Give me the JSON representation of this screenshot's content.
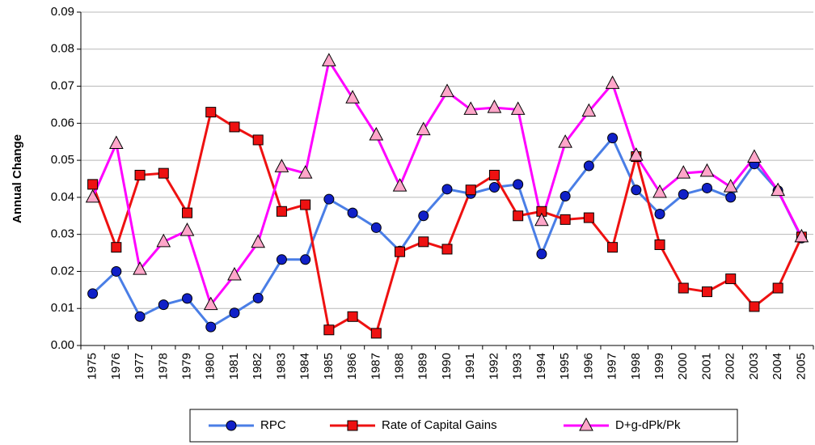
{
  "chart_data": {
    "type": "line",
    "y_label": "Annual Change",
    "categories": [
      "1975",
      "1976",
      "1977",
      "1978",
      "1979",
      "1980",
      "1981",
      "1982",
      "1983",
      "1984",
      "1985",
      "1986",
      "1987",
      "1988",
      "1989",
      "1990",
      "1991",
      "1992",
      "1993",
      "1994",
      "1995",
      "1996",
      "1997",
      "1998",
      "1999",
      "2000",
      "2001",
      "2002",
      "2003",
      "2004",
      "2005"
    ],
    "series": [
      {
        "name": "RPC",
        "color": "#4a7ee6",
        "marker": "circle",
        "marker_color": "#1020c8",
        "values": [
          0.014,
          0.02,
          0.0078,
          0.011,
          0.0127,
          0.005,
          0.0088,
          0.0128,
          0.0232,
          0.0232,
          0.0395,
          0.0358,
          0.0318,
          0.0255,
          0.035,
          0.0422,
          0.041,
          0.0427,
          0.0435,
          0.0247,
          0.0403,
          0.0485,
          0.056,
          0.042,
          0.0355,
          0.0408,
          0.0425,
          0.04,
          0.049,
          0.0418,
          0.029
        ]
      },
      {
        "name": "Rate of Capital Gains",
        "color": "#ee1111",
        "marker": "square",
        "marker_color": "#ee1111",
        "values": [
          0.0435,
          0.0265,
          0.046,
          0.0465,
          0.0358,
          0.063,
          0.059,
          0.0555,
          0.0362,
          0.038,
          0.0042,
          0.0078,
          0.0033,
          0.0253,
          0.028,
          0.026,
          0.042,
          0.046,
          0.035,
          0.0362,
          0.034,
          0.0345,
          0.0265,
          0.051,
          0.0272,
          0.0155,
          0.0145,
          0.018,
          0.0105,
          0.0155,
          0.0293
        ]
      },
      {
        "name": "D+g-dPk/Pk",
        "color": "#ff00ff",
        "marker": "triangle",
        "marker_color": "#ffa6c9",
        "values": [
          0.04,
          0.0545,
          0.0205,
          0.028,
          0.031,
          0.011,
          0.019,
          0.0278,
          0.0482,
          0.0465,
          0.0768,
          0.0668,
          0.0568,
          0.043,
          0.0582,
          0.0685,
          0.0637,
          0.0642,
          0.0637,
          0.0337,
          0.0548,
          0.0632,
          0.0707,
          0.0513,
          0.0413,
          0.0465,
          0.047,
          0.0428,
          0.0508,
          0.0418,
          0.0293
        ]
      }
    ],
    "ylim": [
      0,
      0.09
    ],
    "yticks": [
      {
        "value": 0,
        "label": "0.00"
      },
      0.01,
      0.02,
      0.03,
      0.04,
      0.05,
      0.06,
      0.07,
      0.08,
      0.09
    ],
    "grid": true,
    "legend": "bottom"
  }
}
